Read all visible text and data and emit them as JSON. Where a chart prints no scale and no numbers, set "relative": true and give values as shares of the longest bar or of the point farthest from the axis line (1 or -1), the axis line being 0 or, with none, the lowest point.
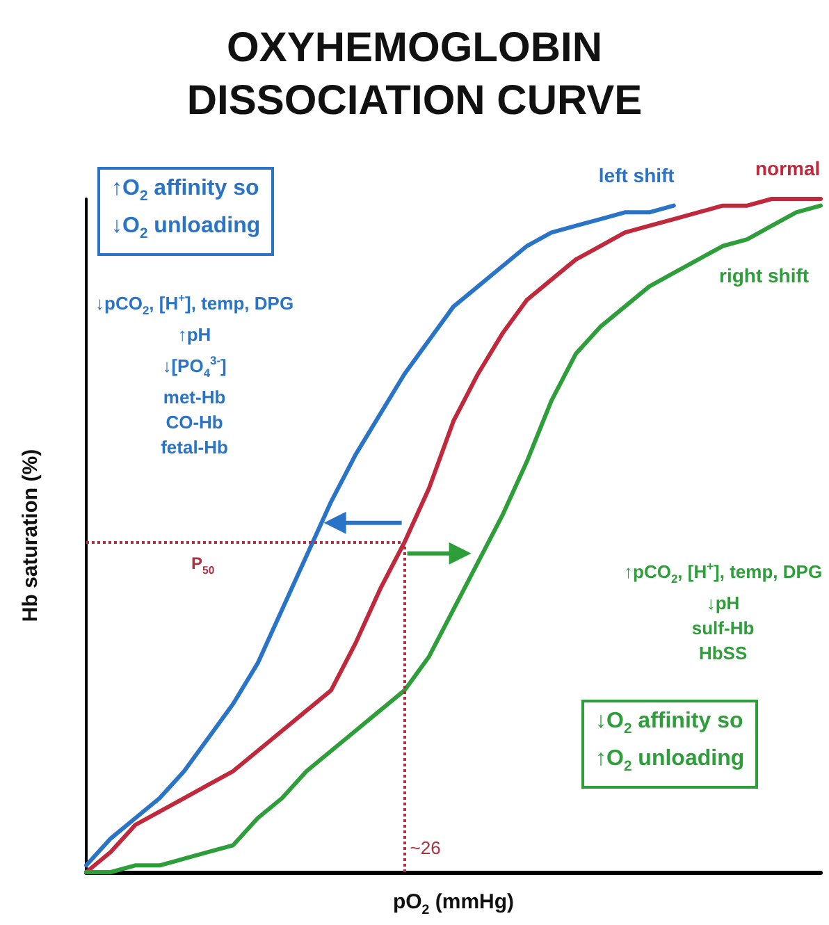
{
  "chart_data": {
    "type": "line",
    "title": "OXYHEMOGLOBIN\nDISSOCIATION CURVE",
    "xlabel": "pO$_{2}$ (mmHg)",
    "ylabel": "Hb saturation (%)",
    "relative": true,
    "grid": false,
    "legend": false,
    "marker": "none",
    "line_style": "solid",
    "categories": [
      null,
      null,
      null,
      null,
      null,
      null,
      null,
      null,
      null,
      null,
      null,
      null,
      null,
      null,
      null,
      null,
      null,
      null,
      null,
      null,
      null,
      null,
      null,
      null,
      null,
      null,
      null,
      null,
      null,
      null,
      null
    ],
    "series": [
      {
        "name": "left shift",
        "color": "#2a74c8",
        "values": [
          0.01,
          0.05,
          0.08,
          0.11,
          0.15,
          0.2,
          0.25,
          0.31,
          0.39,
          0.47,
          0.55,
          0.62,
          0.68,
          0.74,
          0.79,
          0.84,
          0.87,
          0.9,
          0.93,
          0.95,
          0.96,
          0.97,
          0.98,
          0.98,
          0.99,
          null,
          null,
          null,
          null,
          null,
          null
        ]
      },
      {
        "name": "normal",
        "color": "#c0283c",
        "values": [
          0,
          0.03,
          0.07,
          0.09,
          0.11,
          0.13,
          0.15,
          0.18,
          0.21,
          0.24,
          0.27,
          0.34,
          0.42,
          0.49,
          0.57,
          0.67,
          0.74,
          0.8,
          0.85,
          0.88,
          0.91,
          0.93,
          0.95,
          0.96,
          0.97,
          0.98,
          0.99,
          0.99,
          1,
          1,
          1
        ]
      },
      {
        "name": "right shift",
        "color": "#2e9e3a",
        "values": [
          0,
          0,
          0.01,
          0.01,
          0.02,
          0.03,
          0.04,
          0.08,
          0.11,
          0.15,
          0.18,
          0.21,
          0.24,
          0.27,
          0.32,
          0.39,
          0.46,
          0.53,
          0.61,
          0.7,
          0.77,
          0.81,
          0.84,
          0.87,
          0.89,
          0.91,
          0.93,
          0.94,
          0.96,
          0.98,
          0.99
        ]
      }
    ],
    "ref_lines": [
      {
        "axis": "y",
        "value": 0.49,
        "label": "P$_{50}$",
        "color": "#b03040",
        "line_style": "dotted"
      }
    ],
    "annotations": [
      "↑O$_{2}$ affinity so\n↓O$_{2}$ unloading",
      "↓pCO$_{2}$, [H$^{+}$], temp, DPG\n↑pH\n↓[PO$_{4}$$^{3-}$]\nmet-Hb\nCO-Hb\nfetal-Hb",
      "↑pCO$_{2}$, [H$^{+}$], temp, DPG\n↓pH\nsulf-Hb\nHbSS",
      "↓O$_{2}$ affinity so\n↑O$_{2}$ unloading",
      "~26"
    ]
  }
}
